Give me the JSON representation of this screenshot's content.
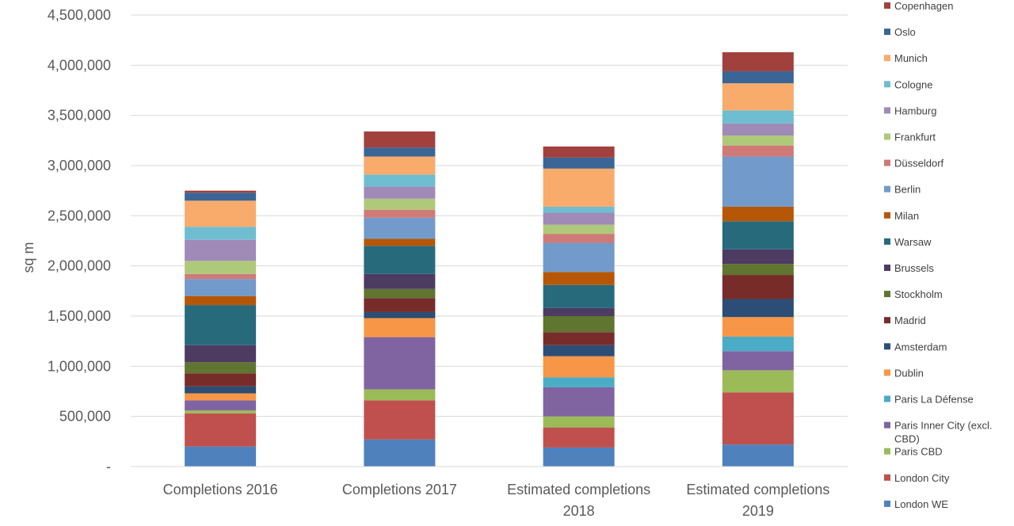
{
  "chart_data": {
    "type": "bar",
    "stacked": true,
    "title": "",
    "xlabel": "",
    "ylabel": "sq m",
    "ylim": [
      0,
      4500000
    ],
    "yticks": [
      0,
      500000,
      1000000,
      1500000,
      2000000,
      2500000,
      3000000,
      3500000,
      4000000,
      4500000
    ],
    "ytick_labels": [
      "-",
      "500,000",
      "1,000,000",
      "1,500,000",
      "2,000,000",
      "2,500,000",
      "3,000,000",
      "3,500,000",
      "4,000,000",
      "4,500,000"
    ],
    "grid": true,
    "legend_position": "right",
    "categories": [
      [
        "Completions 2016"
      ],
      [
        "Completions 2017"
      ],
      [
        "Estimated completions",
        "2018"
      ],
      [
        "Estimated completions",
        "2019"
      ]
    ],
    "series": [
      {
        "name": "London WE",
        "color": "#4F81BD",
        "values": [
          200000,
          270000,
          190000,
          220000
        ]
      },
      {
        "name": "London City",
        "color": "#C0504D",
        "values": [
          330000,
          390000,
          200000,
          520000
        ]
      },
      {
        "name": "Paris CBD",
        "color": "#9BBB59",
        "values": [
          30000,
          110000,
          110000,
          220000
        ]
      },
      {
        "name": [
          "Paris Inner City (excl.",
          "CBD)"
        ],
        "color": "#8064A2",
        "values": [
          100000,
          520000,
          290000,
          190000
        ]
      },
      {
        "name": "Paris La Défense",
        "color": "#4BACC6",
        "values": [
          0,
          0,
          100000,
          145000
        ]
      },
      {
        "name": "Dublin",
        "color": "#F79646",
        "values": [
          70000,
          190000,
          210000,
          195000
        ]
      },
      {
        "name": "Amsterdam",
        "color": "#2C4D75",
        "values": [
          70000,
          60000,
          110000,
          180000
        ]
      },
      {
        "name": "Madrid",
        "color": "#772C2A",
        "values": [
          130000,
          140000,
          130000,
          240000
        ]
      },
      {
        "name": "Stockholm",
        "color": "#5F7530",
        "values": [
          110000,
          90000,
          160000,
          110000
        ]
      },
      {
        "name": "Brussels",
        "color": "#4D3B62",
        "values": [
          170000,
          150000,
          80000,
          145000
        ]
      },
      {
        "name": "Warsaw",
        "color": "#276A7C",
        "values": [
          400000,
          280000,
          230000,
          280000
        ]
      },
      {
        "name": "Milan",
        "color": "#B65708",
        "values": [
          90000,
          70000,
          130000,
          145000
        ]
      },
      {
        "name": "Berlin",
        "color": "#729ACA",
        "values": [
          170000,
          210000,
          290000,
          500000
        ]
      },
      {
        "name": "Düsseldorf",
        "color": "#D07A78",
        "values": [
          50000,
          80000,
          90000,
          110000
        ]
      },
      {
        "name": "Frankfurt",
        "color": "#AFC97A",
        "values": [
          130000,
          110000,
          90000,
          100000
        ]
      },
      {
        "name": "Hamburg",
        "color": "#9F8AB8",
        "values": [
          210000,
          120000,
          120000,
          120000
        ]
      },
      {
        "name": "Cologne",
        "color": "#6FBDD1",
        "values": [
          130000,
          120000,
          60000,
          130000
        ]
      },
      {
        "name": "Munich",
        "color": "#F9AB6B",
        "values": [
          260000,
          180000,
          380000,
          270000
        ]
      },
      {
        "name": "Oslo",
        "color": "#3A6595",
        "values": [
          80000,
          90000,
          110000,
          120000
        ]
      },
      {
        "name": "Copenhagen",
        "color": "#A2403E",
        "values": [
          20000,
          160000,
          110000,
          190000
        ]
      }
    ]
  }
}
